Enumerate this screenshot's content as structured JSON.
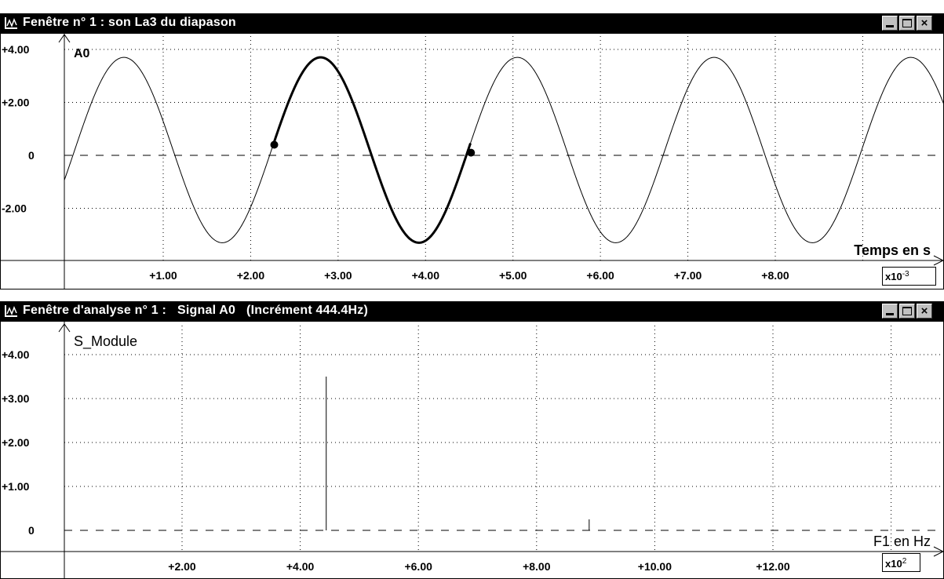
{
  "windows": [
    {
      "title": "Fenêtre n° 1 : son La3 du diapason",
      "controls": [
        "minimize",
        "maximize",
        "close"
      ],
      "icons": [
        "app-icon",
        "minimize-icon",
        "maximize-icon",
        "close-icon"
      ]
    },
    {
      "title": "Fenêtre d'analyse n° 1 :   Signal A0   (Incrément 444.4Hz)",
      "controls": [
        "minimize",
        "maximize",
        "close"
      ],
      "icons": [
        "app-icon",
        "minimize-icon",
        "maximize-icon",
        "close-icon"
      ]
    }
  ],
  "chart_data": [
    {
      "type": "line",
      "series_label": "A0",
      "xlabel": "Temps en s",
      "x_multiplier": "x10-3",
      "ylim": [
        -3.5,
        4.2
      ],
      "xlim": [
        -0.4,
        10.5
      ],
      "y_ticks": [
        "+4.00",
        "+2.00",
        "0",
        "-2.00"
      ],
      "y_tick_values": [
        4,
        2,
        0,
        -2
      ],
      "x_ticks": [
        "+1.00",
        "+2.00",
        "+3.00",
        "+4.00",
        "+5.00",
        "+6.00",
        "+7.00",
        "+8.00"
      ],
      "x_tick_values": [
        1,
        2,
        3,
        4,
        5,
        6,
        7,
        8
      ],
      "signal": {
        "amplitude": 3.5,
        "offset": 0.2,
        "period": 2.25,
        "peak_time": 0.55
      },
      "highlight_period": {
        "start": 2.27,
        "end": 4.52
      },
      "markers": [
        {
          "x": 2.27,
          "y": 0.4
        },
        {
          "x": 4.52,
          "y": 0.1
        }
      ],
      "grid": true,
      "zero_line": "dashed"
    },
    {
      "type": "bar",
      "series_label": "S_Module",
      "xlabel": "F1 en Hz",
      "x_multiplier": "x102",
      "ylim": [
        -0.1,
        4.4
      ],
      "xlim": [
        0,
        15.4
      ],
      "y_ticks": [
        "+4.00",
        "+3.00",
        "+2.00",
        "+1.00",
        "0"
      ],
      "y_tick_values": [
        4,
        3,
        2,
        1,
        0
      ],
      "x_ticks": [
        "+2.00",
        "+4.00",
        "+6.00",
        "+8.00",
        "+10.00",
        "+12.00"
      ],
      "x_tick_values": [
        2,
        4,
        6,
        8,
        10,
        12
      ],
      "x": [
        4.44,
        8.89
      ],
      "values": [
        3.5,
        0.25
      ],
      "grid": true,
      "zero_line": "dashed"
    }
  ]
}
